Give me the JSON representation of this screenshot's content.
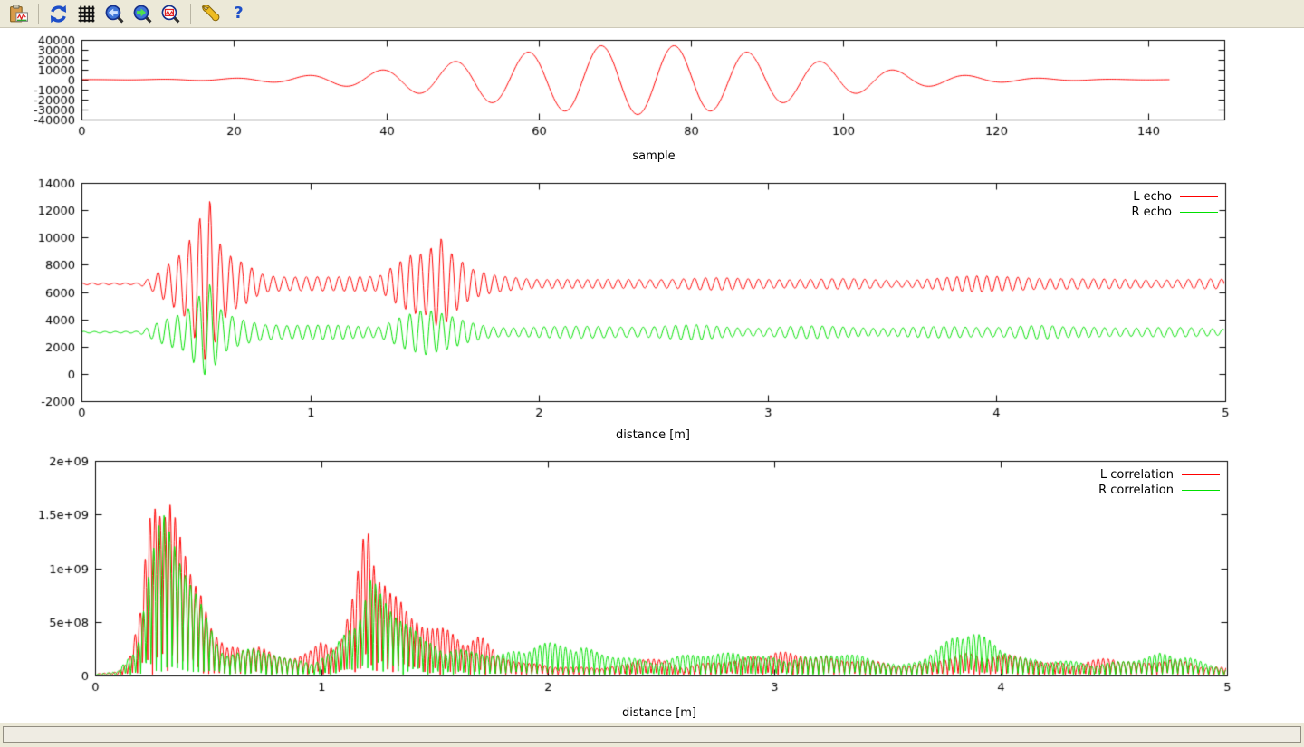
{
  "window": {
    "chrome_background": "#ece9d8",
    "canvas_background": "#ffffff",
    "axis_color": "#000000"
  },
  "toolbar": {
    "icons": [
      "copy-to-clipboard",
      "replot",
      "toggle-grid",
      "zoom-previous",
      "zoom-next",
      "apply-autoscale",
      "settings",
      "help"
    ]
  },
  "status_bar": {
    "text": ""
  },
  "chart_data": [
    {
      "type": "line",
      "title": "",
      "xlabel": "sample",
      "ylabel": "",
      "xlim": [
        0,
        150
      ],
      "ylim": [
        -40000,
        40000
      ],
      "grid": false,
      "legend_position": "none",
      "xticks": {
        "values": [
          0,
          20,
          40,
          60,
          80,
          100,
          120,
          140
        ],
        "labels": [
          "0",
          "20",
          "40",
          "60",
          "80",
          "100",
          "120",
          "140"
        ]
      },
      "yticks": {
        "values": [
          -40000,
          -30000,
          -20000,
          -10000,
          0,
          10000,
          20000,
          30000,
          40000
        ],
        "labels": [
          "-40000",
          "-30000",
          "-20000",
          "-10000",
          "0",
          "10000",
          "20000",
          "30000",
          "40000"
        ]
      },
      "series": [
        {
          "name": "",
          "color": "#ff0000",
          "model": {
            "kind": "wavelet",
            "x_start": 0,
            "x_end": 143,
            "step": 0.2,
            "center": 73,
            "period": 9.6,
            "amplitude": 35000,
            "sigma": 21
          }
        }
      ]
    },
    {
      "type": "line",
      "title": "",
      "xlabel": "distance [m]",
      "ylabel": "",
      "xlim": [
        0,
        5
      ],
      "ylim": [
        -2000,
        14000
      ],
      "grid": false,
      "legend_position": "top-right",
      "xticks": {
        "values": [
          0,
          1,
          2,
          3,
          4,
          5
        ],
        "labels": [
          "0",
          "1",
          "2",
          "3",
          "4",
          "5"
        ]
      },
      "yticks": {
        "values": [
          -2000,
          0,
          2000,
          4000,
          6000,
          8000,
          10000,
          12000,
          14000
        ],
        "labels": [
          "-2000",
          "0",
          "2000",
          "4000",
          "6000",
          "8000",
          "10000",
          "12000",
          "14000"
        ]
      },
      "series": [
        {
          "name": "L echo",
          "color": "#ff0000",
          "model": {
            "kind": "burst_signal",
            "baseline": 6600,
            "carrier_period": 0.046,
            "step": 0.0035,
            "seed": 1,
            "envelope": [
              [
                0,
                90
              ],
              [
                0.25,
                110
              ],
              [
                0.3,
                700
              ],
              [
                0.35,
                1500
              ],
              [
                0.45,
                2700
              ],
              [
                0.52,
                5200
              ],
              [
                0.56,
                6700
              ],
              [
                0.6,
                3500
              ],
              [
                0.65,
                2600
              ],
              [
                0.72,
                2200
              ],
              [
                0.8,
                1100
              ],
              [
                0.9,
                800
              ],
              [
                1.0,
                700
              ],
              [
                1.1,
                650
              ],
              [
                1.3,
                950
              ],
              [
                1.38,
                2600
              ],
              [
                1.45,
                3200
              ],
              [
                1.5,
                2800
              ],
              [
                1.57,
                3800
              ],
              [
                1.62,
                2400
              ],
              [
                1.7,
                1300
              ],
              [
                1.8,
                950
              ],
              [
                1.9,
                800
              ],
              [
                2.0,
                520
              ],
              [
                2.2,
                380
              ],
              [
                2.4,
                560
              ],
              [
                2.6,
                450
              ],
              [
                2.8,
                520
              ],
              [
                3.0,
                560
              ],
              [
                3.2,
                450
              ],
              [
                3.4,
                520
              ],
              [
                3.6,
                420
              ],
              [
                3.8,
                560
              ],
              [
                3.95,
                700
              ],
              [
                4.1,
                820
              ],
              [
                4.25,
                600
              ],
              [
                4.4,
                460
              ],
              [
                4.6,
                520
              ],
              [
                4.8,
                420
              ],
              [
                5.0,
                380
              ]
            ]
          }
        },
        {
          "name": "R echo",
          "color": "#00e000",
          "model": {
            "kind": "burst_signal",
            "baseline": 3050,
            "carrier_period": 0.046,
            "step": 0.0035,
            "seed": 2,
            "envelope": [
              [
                0,
                80
              ],
              [
                0.25,
                100
              ],
              [
                0.3,
                550
              ],
              [
                0.35,
                1000
              ],
              [
                0.45,
                1600
              ],
              [
                0.52,
                3500
              ],
              [
                0.56,
                5000
              ],
              [
                0.6,
                2800
              ],
              [
                0.65,
                2200
              ],
              [
                0.7,
                1800
              ],
              [
                0.8,
                950
              ],
              [
                0.9,
                650
              ],
              [
                1.0,
                620
              ],
              [
                1.15,
                720
              ],
              [
                1.3,
                620
              ],
              [
                1.4,
                1500
              ],
              [
                1.5,
                1900
              ],
              [
                1.6,
                1500
              ],
              [
                1.7,
                1100
              ],
              [
                1.8,
                720
              ],
              [
                1.9,
                560
              ],
              [
                2.1,
                520
              ],
              [
                2.3,
                620
              ],
              [
                2.5,
                520
              ],
              [
                2.7,
                660
              ],
              [
                2.9,
                560
              ],
              [
                3.1,
                620
              ],
              [
                3.3,
                520
              ],
              [
                3.5,
                420
              ],
              [
                3.7,
                470
              ],
              [
                3.9,
                520
              ],
              [
                4.0,
                700
              ],
              [
                4.1,
                900
              ],
              [
                4.18,
                800
              ],
              [
                4.3,
                470
              ],
              [
                4.5,
                420
              ],
              [
                4.7,
                470
              ],
              [
                4.9,
                360
              ],
              [
                5.0,
                320
              ]
            ]
          }
        }
      ]
    },
    {
      "type": "line",
      "title": "",
      "xlabel": "distance [m]",
      "ylabel": "",
      "xlim": [
        0,
        5
      ],
      "ylim": [
        0,
        2000000000
      ],
      "grid": false,
      "legend_position": "top-right",
      "xticks": {
        "values": [
          0,
          1,
          2,
          3,
          4,
          5
        ],
        "labels": [
          "0",
          "1",
          "2",
          "3",
          "4",
          "5"
        ]
      },
      "yticks": {
        "values": [
          0,
          500000000,
          1000000000,
          1500000000,
          2000000000
        ],
        "labels": [
          "0",
          "5e+08",
          "1e+09",
          "1.5e+09",
          "2e+09"
        ]
      },
      "series": [
        {
          "name": "L correlation",
          "color": "#ff0000",
          "model": {
            "kind": "rectified",
            "carrier_period": 0.023,
            "step": 0.0018,
            "seed": 3,
            "envelope": [
              [
                0,
                20000000
              ],
              [
                0.1,
                50000000
              ],
              [
                0.15,
                150000000
              ],
              [
                0.2,
                600000000
              ],
              [
                0.24,
                1600000000
              ],
              [
                0.28,
                2150000000
              ],
              [
                0.33,
                2050000000
              ],
              [
                0.38,
                1500000000
              ],
              [
                0.42,
                1200000000
              ],
              [
                0.47,
                1000000000
              ],
              [
                0.52,
                500000000
              ],
              [
                0.58,
                300000000
              ],
              [
                0.65,
                350000000
              ],
              [
                0.72,
                300000000
              ],
              [
                0.8,
                200000000
              ],
              [
                0.9,
                250000000
              ],
              [
                1.0,
                450000000
              ],
              [
                1.08,
                350000000
              ],
              [
                1.15,
                900000000
              ],
              [
                1.2,
                1750000000
              ],
              [
                1.25,
                1300000000
              ],
              [
                1.3,
                1000000000
              ],
              [
                1.35,
                950000000
              ],
              [
                1.42,
                750000000
              ],
              [
                1.5,
                550000000
              ],
              [
                1.55,
                500000000
              ],
              [
                1.62,
                400000000
              ],
              [
                1.7,
                450000000
              ],
              [
                1.78,
                250000000
              ],
              [
                1.9,
                150000000
              ],
              [
                2.0,
                120000000
              ],
              [
                2.1,
                80000000
              ],
              [
                2.25,
                100000000
              ],
              [
                2.4,
                200000000
              ],
              [
                2.5,
                150000000
              ],
              [
                2.6,
                100000000
              ],
              [
                2.75,
                150000000
              ],
              [
                2.9,
                220000000
              ],
              [
                3.0,
                250000000
              ],
              [
                3.1,
                200000000
              ],
              [
                3.2,
                250000000
              ],
              [
                3.3,
                200000000
              ],
              [
                3.45,
                150000000
              ],
              [
                3.6,
                100000000
              ],
              [
                3.75,
                220000000
              ],
              [
                3.85,
                260000000
              ],
              [
                3.95,
                220000000
              ],
              [
                4.1,
                230000000
              ],
              [
                4.2,
                180000000
              ],
              [
                4.35,
                130000000
              ],
              [
                4.5,
                200000000
              ],
              [
                4.6,
                160000000
              ],
              [
                4.75,
                180000000
              ],
              [
                4.9,
                100000000
              ],
              [
                5.0,
                80000000
              ]
            ]
          }
        },
        {
          "name": "R correlation",
          "color": "#00e000",
          "model": {
            "kind": "rectified",
            "carrier_period": 0.023,
            "step": 0.0018,
            "seed": 4,
            "envelope": [
              [
                0,
                15000000
              ],
              [
                0.1,
                40000000
              ],
              [
                0.18,
                300000000
              ],
              [
                0.24,
                1200000000
              ],
              [
                0.3,
                1900000000
              ],
              [
                0.35,
                1750000000
              ],
              [
                0.4,
                1400000000
              ],
              [
                0.45,
                1000000000
              ],
              [
                0.5,
                600000000
              ],
              [
                0.55,
                300000000
              ],
              [
                0.62,
                250000000
              ],
              [
                0.7,
                300000000
              ],
              [
                0.78,
                300000000
              ],
              [
                0.88,
                200000000
              ],
              [
                0.95,
                150000000
              ],
              [
                1.05,
                250000000
              ],
              [
                1.15,
                600000000
              ],
              [
                1.22,
                1250000000
              ],
              [
                1.3,
                900000000
              ],
              [
                1.38,
                600000000
              ],
              [
                1.45,
                350000000
              ],
              [
                1.55,
                300000000
              ],
              [
                1.65,
                250000000
              ],
              [
                1.75,
                250000000
              ],
              [
                1.85,
                300000000
              ],
              [
                1.95,
                320000000
              ],
              [
                2.05,
                300000000
              ],
              [
                2.15,
                350000000
              ],
              [
                2.25,
                250000000
              ],
              [
                2.35,
                200000000
              ],
              [
                2.45,
                150000000
              ],
              [
                2.55,
                180000000
              ],
              [
                2.65,
                250000000
              ],
              [
                2.75,
                300000000
              ],
              [
                2.85,
                280000000
              ],
              [
                2.95,
                200000000
              ],
              [
                3.05,
                180000000
              ],
              [
                3.15,
                250000000
              ],
              [
                3.25,
                280000000
              ],
              [
                3.35,
                220000000
              ],
              [
                3.45,
                180000000
              ],
              [
                3.55,
                120000000
              ],
              [
                3.65,
                200000000
              ],
              [
                3.75,
                350000000
              ],
              [
                3.85,
                520000000
              ],
              [
                3.92,
                400000000
              ],
              [
                4.0,
                280000000
              ],
              [
                4.1,
                250000000
              ],
              [
                4.2,
                180000000
              ],
              [
                4.3,
                140000000
              ],
              [
                4.4,
                120000000
              ],
              [
                4.5,
                150000000
              ],
              [
                4.6,
                180000000
              ],
              [
                4.7,
                250000000
              ],
              [
                4.8,
                220000000
              ],
              [
                4.9,
                120000000
              ],
              [
                5.0,
                80000000
              ]
            ]
          }
        }
      ]
    }
  ]
}
